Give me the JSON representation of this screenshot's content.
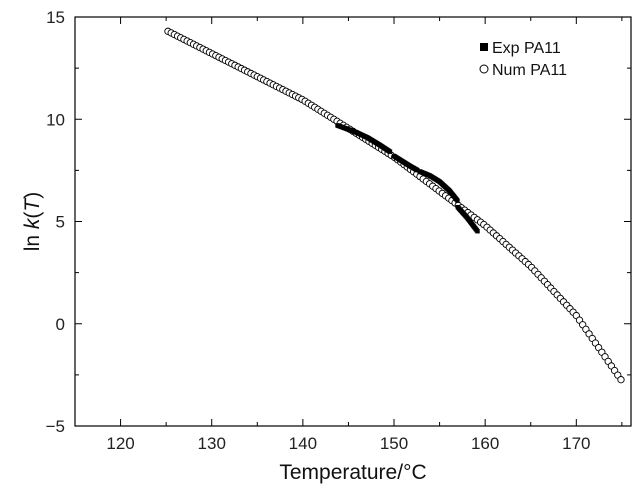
{
  "chart_data": {
    "type": "scatter",
    "xlabel": "Temperature/°C",
    "ylabel_prefix": "ln ",
    "ylabel_func": "k",
    "ylabel_open": "(",
    "ylabel_var": "T",
    "ylabel_close": ")",
    "xlim": [
      115,
      176
    ],
    "ylim": [
      -5,
      15
    ],
    "xticks": [
      120,
      130,
      140,
      150,
      160,
      170
    ],
    "xtick_labels": [
      "120",
      "130",
      "140",
      "150",
      "160",
      "170"
    ],
    "yticks": [
      -5,
      0,
      5,
      10,
      15
    ],
    "ytick_labels": [
      "−5",
      "0",
      "5",
      "10",
      "15"
    ],
    "grid": false,
    "legend": {
      "position": "top-right"
    },
    "series": [
      {
        "name": "Exp PA11",
        "marker": "filled-square",
        "color": "#000000",
        "segments": [
          {
            "x": [
              143.8,
              144.7,
              145.9,
              147.1,
              148.4,
              149.6
            ],
            "y": [
              9.7,
              9.55,
              9.35,
              9.1,
              8.75,
              8.4
            ]
          },
          {
            "x": [
              150.0,
              150.9,
              151.8,
              152.6
            ],
            "y": [
              8.2,
              7.95,
              7.7,
              7.5
            ]
          },
          {
            "x": [
              152.8,
              153.9,
              155.0,
              156.1,
              157.0
            ],
            "y": [
              7.45,
              7.25,
              6.95,
              6.5,
              6.0
            ]
          },
          {
            "x": [
              157.0,
              158.0,
              159.2
            ],
            "y": [
              5.7,
              5.2,
              4.5
            ]
          }
        ]
      },
      {
        "name": "Num PA11",
        "marker": "open-circle",
        "color": "#000000",
        "x": [
          125.2,
          140,
          150,
          160,
          165,
          170,
          175
        ],
        "y": [
          14.3,
          10.95,
          8.15,
          4.8,
          2.8,
          0.4,
          -2.8
        ]
      }
    ]
  }
}
